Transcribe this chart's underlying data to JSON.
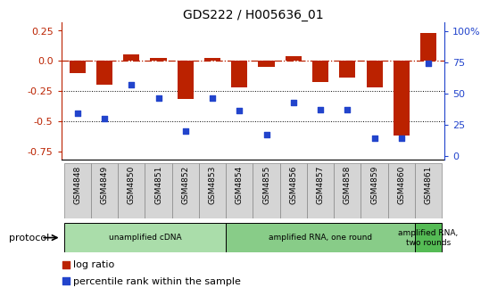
{
  "title": "GDS222 / H005636_01",
  "samples": [
    "GSM4848",
    "GSM4849",
    "GSM4850",
    "GSM4851",
    "GSM4852",
    "GSM4853",
    "GSM4854",
    "GSM4855",
    "GSM4856",
    "GSM4857",
    "GSM4858",
    "GSM4859",
    "GSM4860",
    "GSM4861"
  ],
  "log_ratio": [
    -0.1,
    -0.2,
    0.05,
    0.02,
    -0.32,
    0.02,
    -0.22,
    -0.05,
    0.04,
    -0.18,
    -0.14,
    -0.22,
    -0.62,
    0.23
  ],
  "percentile": [
    34,
    30,
    57,
    46,
    20,
    46,
    36,
    17,
    43,
    37,
    37,
    14,
    14,
    74
  ],
  "bar_color": "#bb2200",
  "dot_color": "#2244cc",
  "dashed_color": "#bb2200",
  "ylim_left": [
    -0.82,
    0.32
  ],
  "ylim_right": [
    -3.28,
    107.28
  ],
  "yticks_left": [
    0.25,
    0.0,
    -0.25,
    -0.5,
    -0.75
  ],
  "yticks_right": [
    0,
    25,
    50,
    75,
    100
  ],
  "protocol_boundaries": [
    0,
    6,
    13,
    14
  ],
  "protocol_labels": [
    "unamplified cDNA",
    "amplified RNA, one round",
    "amplified RNA,\ntwo rounds"
  ],
  "protocol_colors": [
    "#aaddaa",
    "#88cc88",
    "#55bb55"
  ],
  "figsize": [
    5.58,
    3.36
  ],
  "dpi": 100
}
